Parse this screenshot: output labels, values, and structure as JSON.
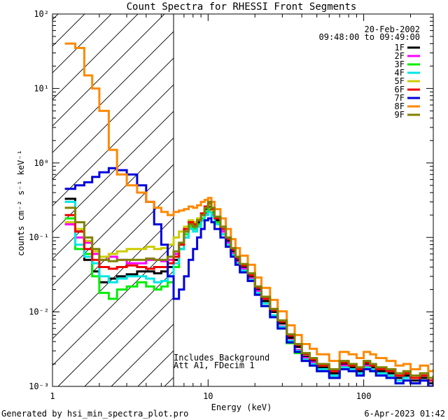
{
  "chart_data": {
    "type": "line",
    "title": "Count Spectra for RHESSI Front Segments",
    "xlabel": "Energy (keV)",
    "ylabel": "counts cm⁻² s⁻¹ keV⁻¹",
    "xscale": "log",
    "yscale": "log",
    "xlim": [
      1,
      280
    ],
    "ylim": [
      0.001,
      100
    ],
    "x_ticks": [
      {
        "value": 1,
        "label": "1"
      },
      {
        "value": 10,
        "label": "10"
      },
      {
        "value": 100,
        "label": "100"
      }
    ],
    "y_ticks": [
      {
        "value": 0.001,
        "label": "10⁻³"
      },
      {
        "value": 0.01,
        "label": "10⁻²"
      },
      {
        "value": 0.1,
        "label": "10⁻¹"
      },
      {
        "value": 1,
        "label": "10⁰"
      },
      {
        "value": 10,
        "label": "10¹"
      },
      {
        "value": 100,
        "label": "10²"
      }
    ],
    "hatch_region_x": [
      1,
      6
    ],
    "vline_x": 6,
    "legend": {
      "date": "20-Feb-2002",
      "time_range": "09:48:00 to 09:49:00",
      "placement": "top-right"
    },
    "annotations": [
      "Includes Background",
      "Att A1, FDecim 1"
    ],
    "series": [
      {
        "name": "1F",
        "color": "#000000",
        "x": [
          1.2,
          1.4,
          1.6,
          1.8,
          2.0,
          2.3,
          2.6,
          3.0,
          3.5,
          4.0,
          4.5,
          5.0,
          5.5,
          6.0,
          6.5,
          7.0,
          7.5,
          8.0,
          8.5,
          9.0,
          9.5,
          10,
          10.5,
          11,
          12,
          13,
          14,
          15,
          16,
          18,
          20,
          22,
          25,
          28,
          32,
          36,
          40,
          45,
          50,
          60,
          70,
          80,
          90,
          100,
          110,
          120,
          140,
          160,
          180,
          200,
          230,
          260,
          280
        ],
        "y": [
          0.33,
          0.12,
          0.05,
          0.035,
          0.025,
          0.028,
          0.03,
          0.032,
          0.035,
          0.035,
          0.033,
          0.035,
          0.04,
          0.05,
          0.08,
          0.12,
          0.15,
          0.14,
          0.16,
          0.2,
          0.24,
          0.26,
          0.22,
          0.17,
          0.12,
          0.09,
          0.065,
          0.05,
          0.04,
          0.03,
          0.02,
          0.014,
          0.01,
          0.007,
          0.0045,
          0.0034,
          0.0025,
          0.0022,
          0.0018,
          0.0015,
          0.002,
          0.0018,
          0.0016,
          0.002,
          0.0018,
          0.0016,
          0.0015,
          0.0013,
          0.0014,
          0.0012,
          0.0013,
          0.0011,
          0.0012
        ]
      },
      {
        "name": "2F",
        "color": "#ff00ff",
        "x": [
          1.2,
          1.4,
          1.6,
          1.8,
          2.0,
          2.3,
          2.6,
          3.0,
          3.5,
          4.0,
          4.5,
          5.0,
          5.5,
          6.0,
          6.5,
          7.0,
          7.5,
          8.0,
          8.5,
          9.0,
          9.5,
          10,
          10.5,
          11,
          12,
          13,
          14,
          15,
          16,
          18,
          20,
          22,
          25,
          28,
          32,
          36,
          40,
          45,
          50,
          60,
          70,
          80,
          90,
          100,
          110,
          120,
          140,
          160,
          180,
          200,
          230,
          260,
          280
        ],
        "y": [
          0.15,
          0.1,
          0.085,
          0.06,
          0.05,
          0.055,
          0.05,
          0.045,
          0.045,
          0.05,
          0.05,
          0.048,
          0.05,
          0.06,
          0.07,
          0.1,
          0.13,
          0.13,
          0.15,
          0.17,
          0.21,
          0.23,
          0.2,
          0.16,
          0.12,
          0.085,
          0.06,
          0.047,
          0.038,
          0.028,
          0.019,
          0.013,
          0.009,
          0.0064,
          0.0042,
          0.0031,
          0.0024,
          0.0021,
          0.0017,
          0.0014,
          0.0019,
          0.0017,
          0.0015,
          0.0019,
          0.0017,
          0.0015,
          0.0014,
          0.0012,
          0.0013,
          0.0011,
          0.0012,
          0.001,
          0.0011
        ]
      },
      {
        "name": "3F",
        "color": "#00ee00",
        "x": [
          1.2,
          1.4,
          1.6,
          1.8,
          2.0,
          2.3,
          2.6,
          3.0,
          3.5,
          4.0,
          4.5,
          5.0,
          5.5,
          6.0,
          6.5,
          7.0,
          7.5,
          8.0,
          8.5,
          9.0,
          9.5,
          10,
          10.5,
          11,
          12,
          13,
          14,
          15,
          16,
          18,
          20,
          22,
          25,
          28,
          32,
          36,
          40,
          45,
          50,
          60,
          70,
          80,
          90,
          100,
          110,
          120,
          140,
          160,
          180,
          200,
          230,
          260,
          280
        ],
        "y": [
          0.18,
          0.07,
          0.06,
          0.03,
          0.018,
          0.015,
          0.02,
          0.022,
          0.025,
          0.022,
          0.02,
          0.022,
          0.025,
          0.04,
          0.07,
          0.11,
          0.14,
          0.13,
          0.15,
          0.18,
          0.22,
          0.24,
          0.21,
          0.16,
          0.11,
          0.08,
          0.058,
          0.045,
          0.035,
          0.026,
          0.017,
          0.012,
          0.0085,
          0.006,
          0.0038,
          0.0028,
          0.0022,
          0.0019,
          0.0016,
          0.0013,
          0.0017,
          0.0016,
          0.0014,
          0.0017,
          0.0016,
          0.0014,
          0.0013,
          0.0011,
          0.0012,
          0.0011,
          0.0012,
          0.001,
          0.0011
        ]
      },
      {
        "name": "4F",
        "color": "#00e5e5",
        "x": [
          1.2,
          1.4,
          1.6,
          1.8,
          2.0,
          2.3,
          2.6,
          3.0,
          3.5,
          4.0,
          4.5,
          5.0,
          5.5,
          6.0,
          6.5,
          7.0,
          7.5,
          8.0,
          8.5,
          9.0,
          9.5,
          10,
          10.5,
          11,
          12,
          13,
          14,
          15,
          16,
          18,
          20,
          22,
          25,
          28,
          32,
          36,
          40,
          45,
          50,
          60,
          70,
          80,
          90,
          100,
          110,
          120,
          140,
          160,
          180,
          200,
          230,
          260,
          280
        ],
        "y": [
          0.3,
          0.08,
          0.055,
          0.045,
          0.03,
          0.025,
          0.028,
          0.03,
          0.03,
          0.028,
          0.025,
          0.026,
          0.03,
          0.045,
          0.07,
          0.1,
          0.13,
          0.12,
          0.14,
          0.17,
          0.2,
          0.22,
          0.19,
          0.15,
          0.11,
          0.08,
          0.058,
          0.045,
          0.036,
          0.027,
          0.018,
          0.013,
          0.009,
          0.0063,
          0.0041,
          0.003,
          0.0023,
          0.002,
          0.0017,
          0.0014,
          0.0018,
          0.0017,
          0.0015,
          0.0018,
          0.0017,
          0.0015,
          0.0014,
          0.0012,
          0.0013,
          0.0011,
          0.0012,
          0.001,
          0.0011
        ]
      },
      {
        "name": "5F",
        "color": "#cccc00",
        "x": [
          1.2,
          1.4,
          1.6,
          1.8,
          2.0,
          2.3,
          2.6,
          3.0,
          3.5,
          4.0,
          4.5,
          5.0,
          5.5,
          6.0,
          6.5,
          7.0,
          7.5,
          8.0,
          8.5,
          9.0,
          9.5,
          10,
          10.5,
          11,
          12,
          13,
          14,
          15,
          16,
          18,
          20,
          22,
          25,
          28,
          32,
          36,
          40,
          45,
          50,
          60,
          70,
          80,
          90,
          100,
          110,
          120,
          140,
          160,
          180,
          200,
          230,
          260,
          280
        ],
        "y": [
          0.16,
          0.13,
          0.09,
          0.065,
          0.055,
          0.06,
          0.065,
          0.07,
          0.07,
          0.075,
          0.07,
          0.072,
          0.08,
          0.1,
          0.12,
          0.14,
          0.17,
          0.16,
          0.18,
          0.21,
          0.25,
          0.27,
          0.23,
          0.18,
          0.13,
          0.095,
          0.068,
          0.053,
          0.042,
          0.032,
          0.021,
          0.015,
          0.0105,
          0.0074,
          0.0048,
          0.0036,
          0.0027,
          0.0023,
          0.0019,
          0.0016,
          0.0021,
          0.0019,
          0.0017,
          0.0021,
          0.0019,
          0.0017,
          0.0016,
          0.0014,
          0.0015,
          0.0013,
          0.0014,
          0.0012,
          0.0013
        ]
      },
      {
        "name": "6F",
        "color": "#ee0000",
        "x": [
          1.2,
          1.4,
          1.6,
          1.8,
          2.0,
          2.3,
          2.6,
          3.0,
          3.5,
          4.0,
          4.5,
          5.0,
          5.5,
          6.0,
          6.5,
          7.0,
          7.5,
          8.0,
          8.5,
          9.0,
          9.5,
          10,
          10.5,
          11,
          12,
          13,
          14,
          15,
          16,
          18,
          20,
          22,
          25,
          28,
          32,
          36,
          40,
          45,
          50,
          60,
          70,
          80,
          90,
          100,
          110,
          120,
          140,
          160,
          180,
          200,
          230,
          260,
          280
        ],
        "y": [
          0.2,
          0.12,
          0.07,
          0.05,
          0.04,
          0.038,
          0.04,
          0.042,
          0.04,
          0.038,
          0.04,
          0.04,
          0.045,
          0.055,
          0.08,
          0.13,
          0.16,
          0.15,
          0.17,
          0.21,
          0.26,
          0.29,
          0.24,
          0.18,
          0.13,
          0.095,
          0.068,
          0.052,
          0.042,
          0.031,
          0.021,
          0.015,
          0.0105,
          0.0074,
          0.0048,
          0.0036,
          0.0027,
          0.0023,
          0.0019,
          0.0016,
          0.0021,
          0.0019,
          0.0017,
          0.0021,
          0.0019,
          0.0017,
          0.0016,
          0.0014,
          0.0015,
          0.0013,
          0.0014,
          0.0012,
          0.0013
        ]
      },
      {
        "name": "7F",
        "color": "#0000dd",
        "x": [
          1.2,
          1.4,
          1.6,
          1.8,
          2.0,
          2.3,
          2.6,
          3.0,
          3.5,
          4.0,
          4.5,
          5.0,
          5.5,
          6.0,
          6.5,
          7.0,
          7.5,
          8.0,
          8.5,
          9.0,
          9.5,
          10,
          10.5,
          11,
          12,
          13,
          14,
          15,
          16,
          18,
          20,
          22,
          25,
          28,
          32,
          36,
          40,
          45,
          50,
          60,
          70,
          80,
          90,
          100,
          110,
          120,
          140,
          160,
          180,
          200,
          230,
          260,
          280
        ],
        "y": [
          0.45,
          0.5,
          0.55,
          0.65,
          0.75,
          0.85,
          0.8,
          0.7,
          0.5,
          0.3,
          0.15,
          0.08,
          0.03,
          0.015,
          0.02,
          0.03,
          0.05,
          0.07,
          0.1,
          0.13,
          0.17,
          0.18,
          0.16,
          0.13,
          0.1,
          0.075,
          0.055,
          0.043,
          0.034,
          0.026,
          0.017,
          0.012,
          0.0085,
          0.006,
          0.0039,
          0.0029,
          0.0022,
          0.0019,
          0.0016,
          0.0013,
          0.0017,
          0.0016,
          0.0014,
          0.0017,
          0.0016,
          0.0014,
          0.0013,
          0.0011,
          0.0012,
          0.0011,
          0.0012,
          0.001,
          0.0011
        ]
      },
      {
        "name": "8F",
        "color": "#ff8800",
        "x": [
          1.2,
          1.4,
          1.6,
          1.8,
          2.0,
          2.3,
          2.6,
          3.0,
          3.5,
          4.0,
          4.5,
          5.0,
          5.5,
          6.0,
          6.5,
          7.0,
          7.5,
          8.0,
          8.5,
          9.0,
          9.5,
          10,
          10.5,
          11,
          12,
          13,
          14,
          15,
          16,
          18,
          20,
          22,
          25,
          28,
          32,
          36,
          40,
          45,
          50,
          60,
          70,
          80,
          90,
          100,
          110,
          120,
          140,
          160,
          180,
          200,
          230,
          260,
          280
        ],
        "y": [
          40,
          35,
          15,
          10,
          5,
          1.5,
          0.7,
          0.5,
          0.4,
          0.3,
          0.25,
          0.22,
          0.2,
          0.22,
          0.23,
          0.24,
          0.26,
          0.25,
          0.27,
          0.3,
          0.32,
          0.34,
          0.3,
          0.24,
          0.18,
          0.13,
          0.095,
          0.072,
          0.057,
          0.043,
          0.029,
          0.021,
          0.0145,
          0.0102,
          0.0066,
          0.0049,
          0.0037,
          0.0032,
          0.0027,
          0.0022,
          0.0029,
          0.0027,
          0.0024,
          0.0029,
          0.0027,
          0.0024,
          0.0022,
          0.0019,
          0.002,
          0.0017,
          0.0019,
          0.0016,
          0.0017
        ]
      },
      {
        "name": "9F",
        "color": "#808000",
        "x": [
          1.2,
          1.4,
          1.6,
          1.8,
          2.0,
          2.3,
          2.6,
          3.0,
          3.5,
          4.0,
          4.5,
          5.0,
          5.5,
          6.0,
          6.5,
          7.0,
          7.5,
          8.0,
          8.5,
          9.0,
          9.5,
          10,
          10.5,
          11,
          12,
          13,
          14,
          15,
          16,
          18,
          20,
          22,
          25,
          28,
          32,
          36,
          40,
          45,
          50,
          60,
          70,
          80,
          90,
          100,
          110,
          120,
          140,
          160,
          180,
          200,
          230,
          260,
          280
        ],
        "y": [
          0.25,
          0.16,
          0.1,
          0.07,
          0.05,
          0.048,
          0.05,
          0.05,
          0.05,
          0.052,
          0.05,
          0.05,
          0.055,
          0.065,
          0.085,
          0.12,
          0.15,
          0.14,
          0.17,
          0.2,
          0.25,
          0.3,
          0.25,
          0.19,
          0.14,
          0.1,
          0.072,
          0.055,
          0.044,
          0.033,
          0.022,
          0.016,
          0.011,
          0.0077,
          0.005,
          0.0037,
          0.0028,
          0.0024,
          0.002,
          0.0017,
          0.0022,
          0.002,
          0.0018,
          0.0022,
          0.002,
          0.0018,
          0.0017,
          0.0015,
          0.0016,
          0.0014,
          0.0015,
          0.0013,
          0.0014
        ]
      }
    ]
  },
  "footer": {
    "generated_by": "Generated by hsi_min_spectra_plot.pro",
    "timestamp": "6-Apr-2023 01:42"
  }
}
